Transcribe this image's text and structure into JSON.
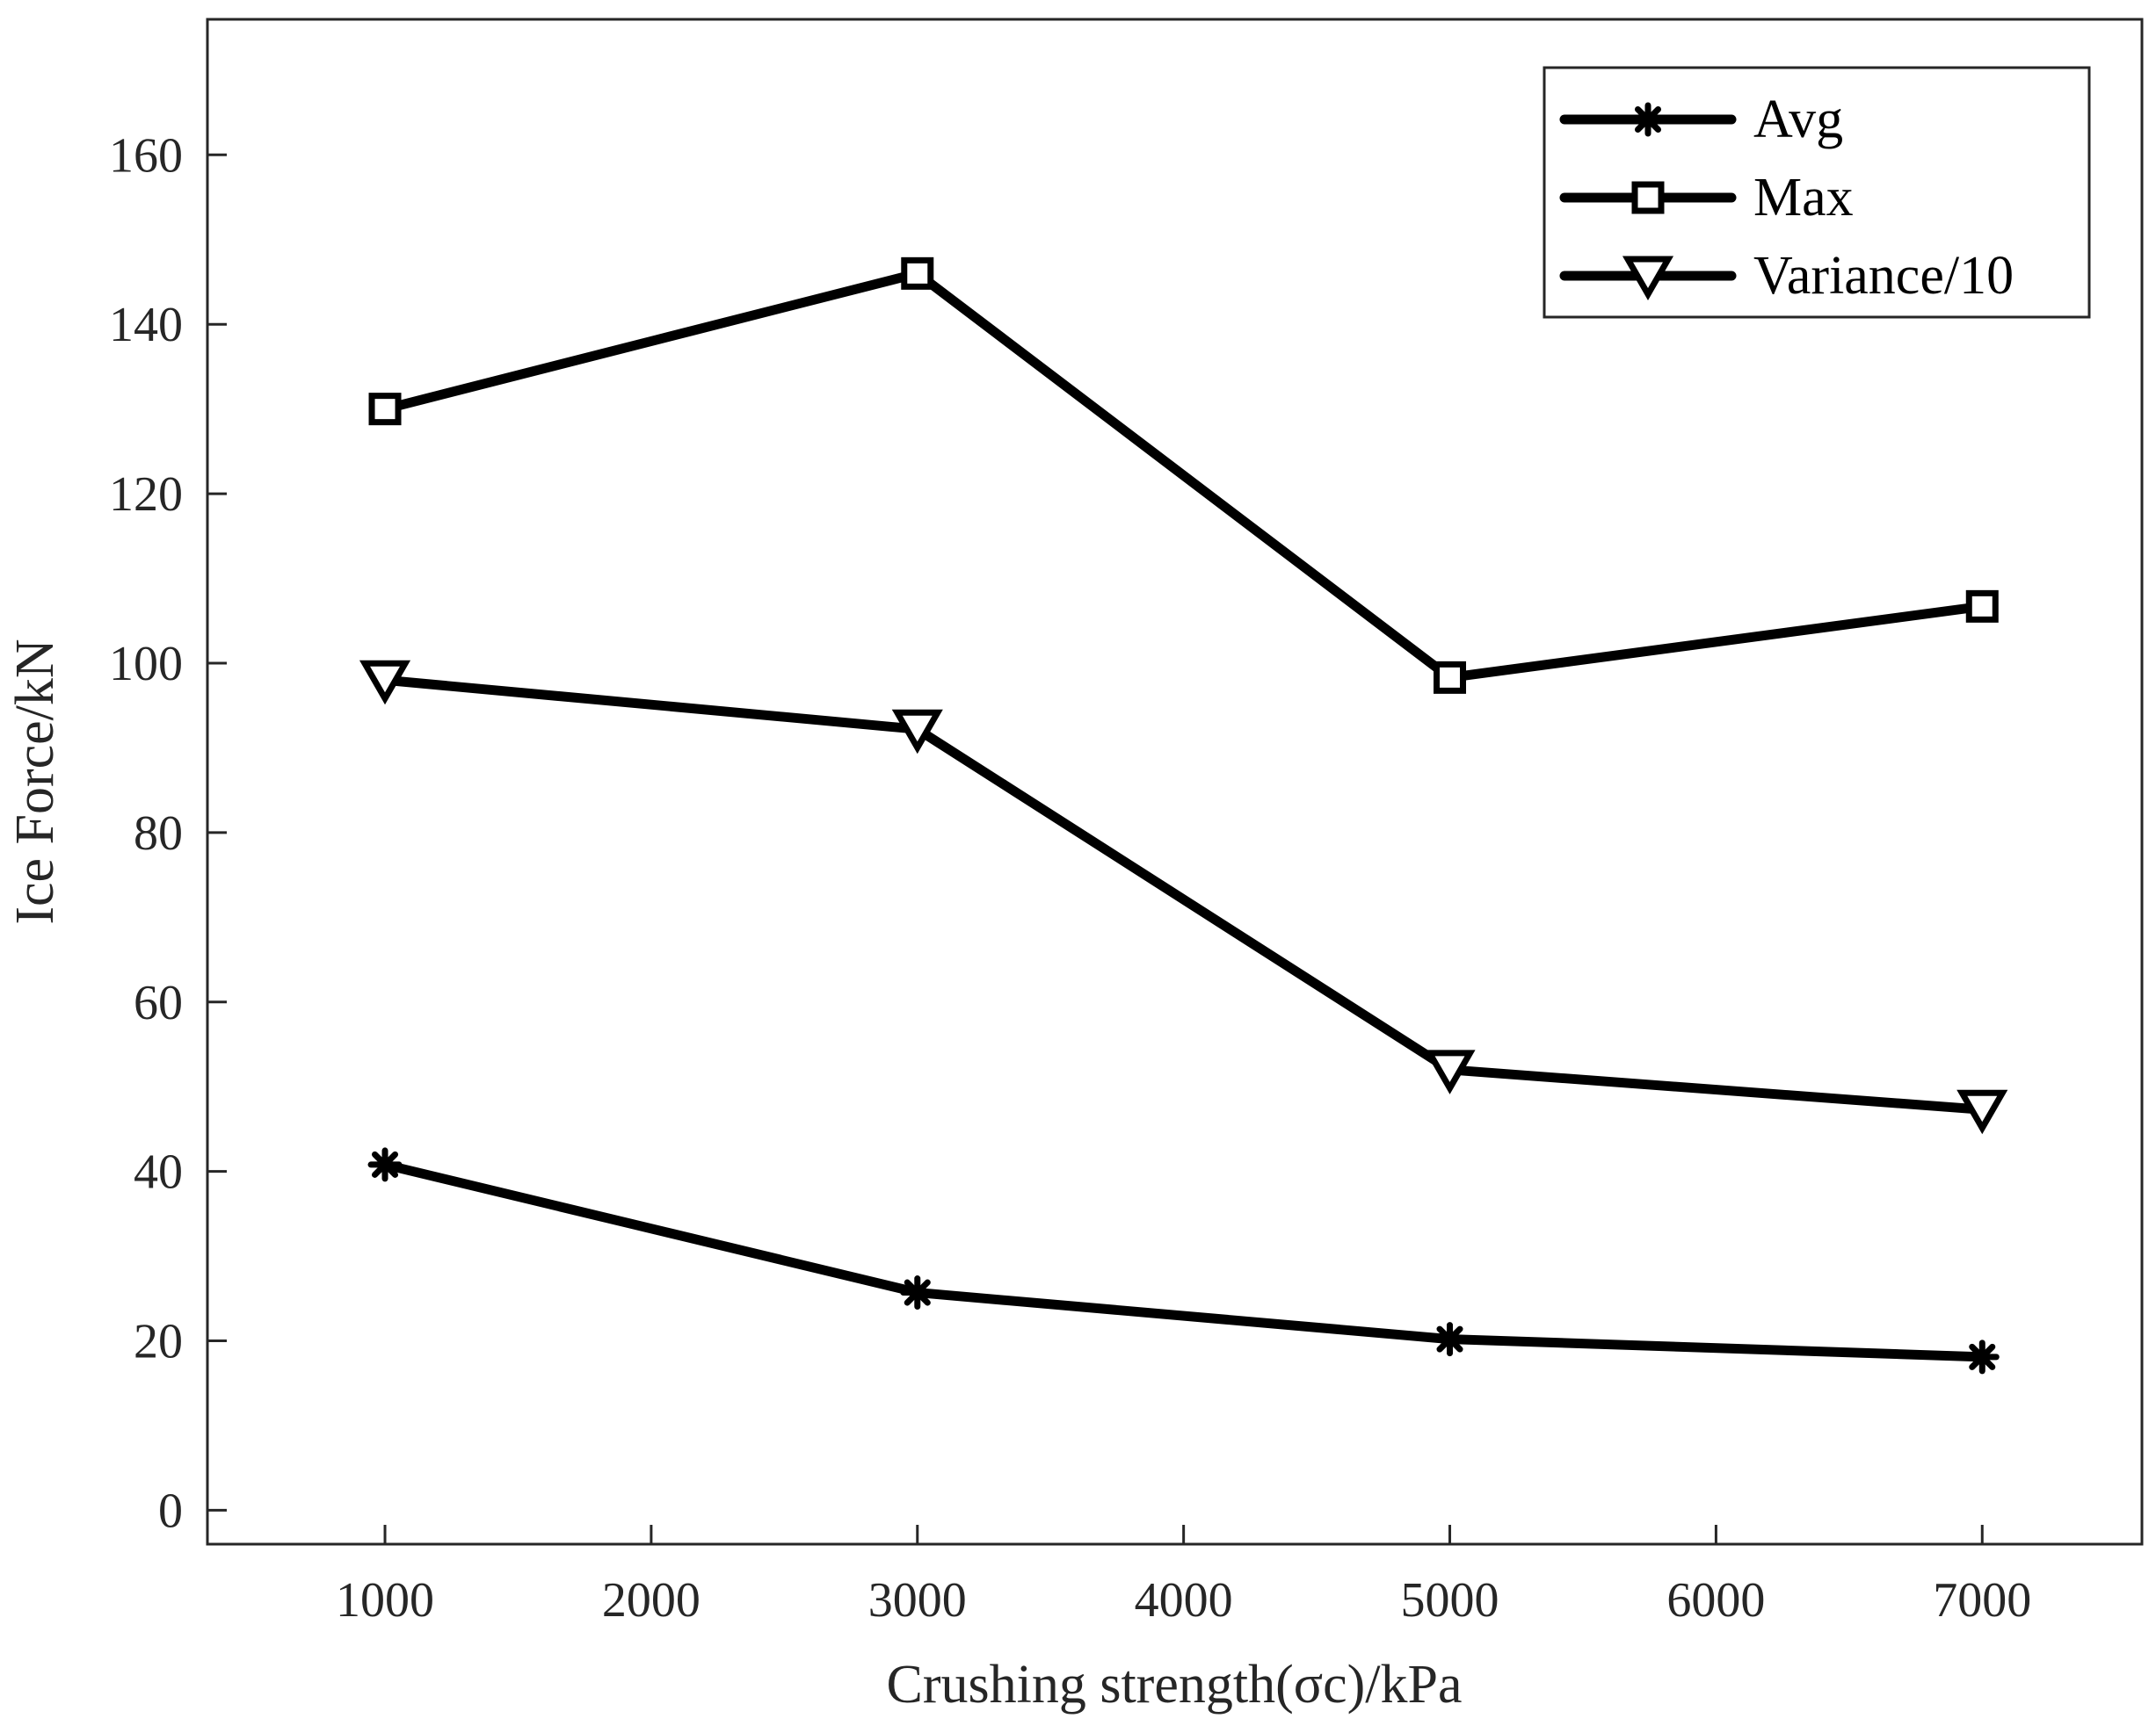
{
  "chart_data": {
    "type": "line",
    "title": "",
    "xlabel": "Crushing  strength(σc)/kPa",
    "ylabel": "Ice  Force/kN",
    "xlim": [
      333,
      7600
    ],
    "ylim": [
      -4,
      176
    ],
    "x_ticks": [
      1000,
      2000,
      3000,
      4000,
      5000,
      6000,
      7000
    ],
    "y_ticks": [
      0,
      20,
      40,
      60,
      80,
      100,
      120,
      140,
      160
    ],
    "x": [
      1000,
      3000,
      5000,
      7000
    ],
    "series": [
      {
        "name": "Avg",
        "marker": "asterisk",
        "values": [
          40.8,
          25.7,
          20.2,
          18.1
        ]
      },
      {
        "name": "Max",
        "marker": "square",
        "values": [
          130,
          146,
          98.3,
          106.7
        ]
      },
      {
        "name": "Variance/10",
        "marker": "triangle-down",
        "values": [
          98,
          92.2,
          52,
          47.3
        ]
      }
    ],
    "legend_position": "top-right",
    "grid": false,
    "colors": {
      "line": "#000000",
      "axis": "#262626",
      "background": "#ffffff"
    }
  }
}
